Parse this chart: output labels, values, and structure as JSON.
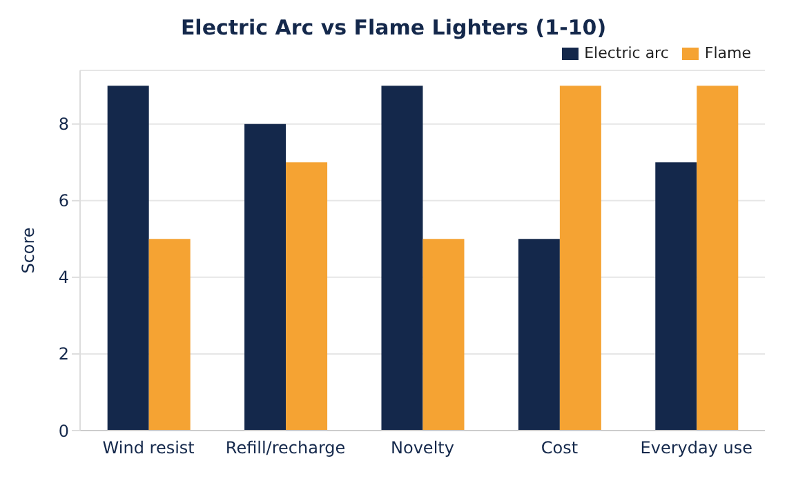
{
  "chart_data": {
    "type": "bar",
    "title": "Electric Arc vs Flame Lighters (1-10)",
    "ylabel": "Score",
    "categories": [
      "Wind resist",
      "Refill/recharge",
      "Novelty",
      "Cost",
      "Everyday use"
    ],
    "series": [
      {
        "name": "Electric arc",
        "color": "#14284b",
        "values": [
          9,
          8,
          9,
          5,
          7
        ]
      },
      {
        "name": "Flame",
        "color": "#f5a333",
        "values": [
          5,
          7,
          5,
          9,
          9
        ]
      }
    ],
    "ylim": [
      0,
      9.4
    ],
    "yticks": [
      0,
      2,
      4,
      6,
      8
    ],
    "grid": "y",
    "legend": "top right"
  }
}
